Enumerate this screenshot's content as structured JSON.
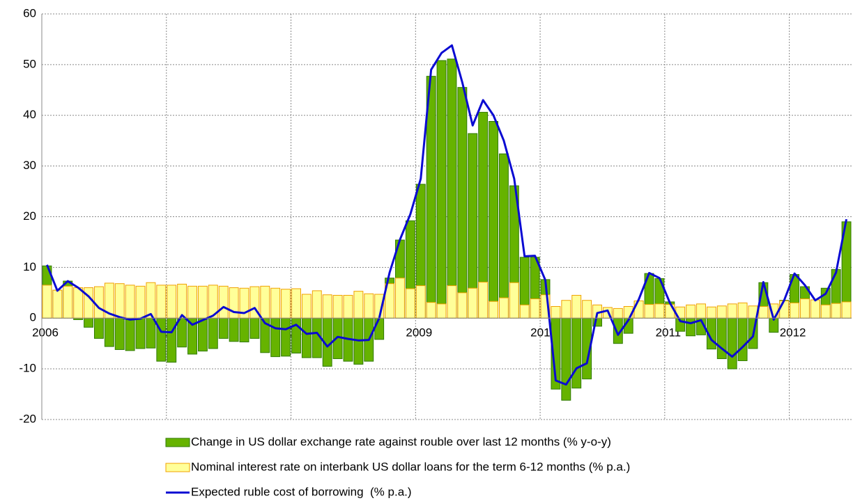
{
  "chart_data": {
    "type": "bar",
    "categories": [
      "2006",
      null,
      null,
      null,
      null,
      null,
      null,
      null,
      null,
      null,
      null,
      null,
      "2007",
      null,
      null,
      null,
      null,
      null,
      null,
      null,
      null,
      null,
      null,
      null,
      "2008",
      null,
      null,
      null,
      null,
      null,
      null,
      null,
      null,
      null,
      null,
      null,
      "2009",
      null,
      null,
      null,
      null,
      null,
      null,
      null,
      null,
      null,
      null,
      null,
      "2010",
      null,
      null,
      null,
      null,
      null,
      null,
      null,
      null,
      null,
      null,
      null,
      "2011",
      null,
      null,
      null,
      null,
      null,
      null,
      null,
      null,
      null,
      null,
      null,
      "2012",
      null,
      null,
      null,
      null,
      null
    ],
    "series": [
      {
        "name": "Change in US dollar exchange rate against rouble over last 12 months (% y-o-y)",
        "type": "bar",
        "color": "#66b300",
        "stroke": "#2f7a00",
        "values": [
          10.3,
          5.5,
          7.3,
          -0.3,
          -1.8,
          -4,
          -5.6,
          -6.2,
          -6.4,
          -6,
          -5.9,
          -8.5,
          -8.7,
          -5.7,
          -7.1,
          -6.5,
          -6,
          -4,
          -4.6,
          -4.7,
          -4,
          -6.8,
          -7.6,
          -7.5,
          -6.9,
          -7.8,
          -7.8,
          -9.5,
          -8,
          -8.5,
          -9.1,
          -8.5,
          -4.2,
          7.9,
          15.4,
          19.2,
          26.4,
          47.7,
          50.8,
          51.1,
          45.5,
          36.4,
          40.6,
          38.8,
          32.4,
          26.1,
          12,
          12,
          7.6,
          -14,
          -16.2,
          -13.8,
          -12,
          -1.6,
          1.3,
          -5,
          -3,
          3.3,
          8.8,
          7.8,
          3.2,
          -2.6,
          -3.5,
          -3.3,
          -6.1,
          -8,
          -10,
          -8.4,
          -6,
          7,
          -2.8,
          3.5,
          8.6,
          6.2,
          3.5,
          5.9,
          9.6,
          19
        ]
      },
      {
        "name": "Nominal interest rate on interbank US dollar loans for the term 6-12 months (% p.a.)",
        "type": "bar",
        "color": "#ffff99",
        "stroke": "#f0a000",
        "values": [
          6.5,
          5.5,
          6.3,
          6,
          6,
          6.2,
          6.9,
          6.8,
          6.5,
          6.3,
          7,
          6.5,
          6.5,
          6.7,
          6.3,
          6.3,
          6.5,
          6.3,
          6,
          5.9,
          6.2,
          6.3,
          5.9,
          5.7,
          5.8,
          4.7,
          5.4,
          4.6,
          4.5,
          4.5,
          5.3,
          4.8,
          4.7,
          6.8,
          7.9,
          5.8,
          6.4,
          3.1,
          2.8,
          6.4,
          5,
          5.9,
          7.1,
          3.3,
          4,
          7,
          2.6,
          3.8,
          4.6,
          2.3,
          3.5,
          4.5,
          3.5,
          2.6,
          2.1,
          1.9,
          2.3,
          3.4,
          2.7,
          2.8,
          2.7,
          2.2,
          2.6,
          2.8,
          2.2,
          2.4,
          2.8,
          3,
          2.4,
          2.3,
          2.8,
          3.4,
          3,
          3.8,
          3.6,
          2.6,
          2.9,
          3.2
        ]
      },
      {
        "name": "Expected ruble cost of borrowing  (% p.a.)",
        "type": "line",
        "color": "#0a0ad2",
        "values": [
          10.5,
          5.4,
          7.3,
          6,
          4.3,
          2,
          0.9,
          0.2,
          -0.3,
          -0.1,
          0.8,
          -2.7,
          -2.8,
          0.6,
          -1.3,
          -0.4,
          0.5,
          2.2,
          1.2,
          1,
          2,
          -1,
          -2,
          -2.2,
          -1.3,
          -3.1,
          -2.9,
          -5.6,
          -3.7,
          -4.1,
          -4.4,
          -4.3,
          0,
          9,
          15.5,
          20.5,
          27.5,
          49,
          52.3,
          53.8,
          46.5,
          38,
          43,
          40,
          35,
          27.5,
          12.2,
          12.3,
          7.5,
          -12.3,
          -13.1,
          -9.9,
          -8.9,
          1,
          1.5,
          -3.3,
          -0.4,
          3.7,
          8.9,
          7.9,
          3,
          -0.6,
          -1,
          -0.4,
          -4.3,
          -6,
          -7.6,
          -5.7,
          -3.6,
          7.1,
          -0.3,
          3.5,
          8.8,
          6.5,
          3.5,
          4.8,
          9,
          19.5
        ]
      }
    ],
    "ylim": [
      -20,
      60
    ],
    "yticks": [
      -20,
      -10,
      0,
      10,
      20,
      30,
      40,
      50,
      60
    ],
    "grid": true
  }
}
